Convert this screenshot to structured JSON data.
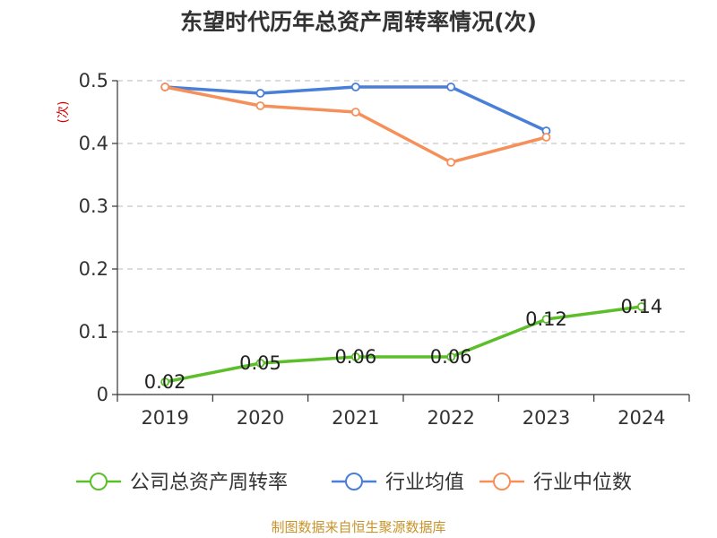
{
  "chart_data": {
    "type": "line",
    "title": "东望时代历年总资产周转率情况(次)",
    "ylabel": "(次)",
    "xlabel": "",
    "categories": [
      "2019",
      "2020",
      "2021",
      "2022",
      "2023",
      "2024"
    ],
    "ylim": [
      0,
      0.5
    ],
    "yticks": [
      "0",
      "0.1",
      "0.2",
      "0.3",
      "0.4",
      "0.5"
    ],
    "grid": true,
    "legend_position": "bottom",
    "series": [
      {
        "name": "公司总资产周转率",
        "color": "#5cbf2a",
        "values": [
          0.02,
          0.05,
          0.06,
          0.06,
          0.12,
          0.14
        ],
        "labels": [
          "0.02",
          "0.05",
          "0.06",
          "0.06",
          "0.12",
          "0.14"
        ]
      },
      {
        "name": "行业均值",
        "color": "#4a7fd8",
        "values": [
          0.49,
          0.48,
          0.49,
          0.49,
          0.42,
          null
        ]
      },
      {
        "name": "行业中位数",
        "color": "#f5905a",
        "values": [
          0.49,
          0.46,
          0.45,
          0.37,
          0.41,
          null
        ]
      }
    ],
    "source": "制图数据来自恒生聚源数据库"
  }
}
